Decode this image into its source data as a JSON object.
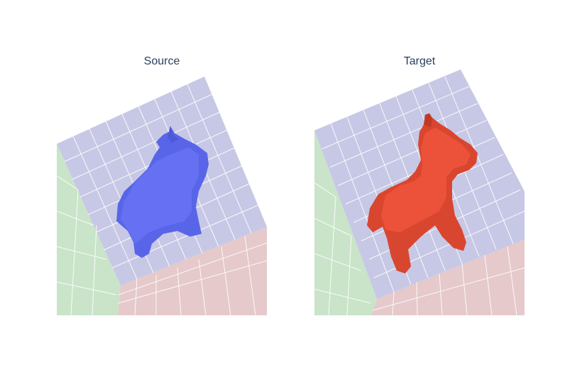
{
  "chart_data": [
    {
      "type": "3d-mesh",
      "title": "Source",
      "mesh_color": "#636efa",
      "wall_colors": {
        "floor": "#c7c8e5",
        "wall_left": "#c9e4c9",
        "wall_right": "#e5c9cb"
      },
      "grid": true
    },
    {
      "type": "3d-mesh",
      "title": "Target",
      "mesh_color": "#ef553b",
      "wall_colors": {
        "floor": "#c7c8e5",
        "wall_left": "#c9e4c9",
        "wall_right": "#e5c9cb"
      },
      "grid": true
    }
  ]
}
